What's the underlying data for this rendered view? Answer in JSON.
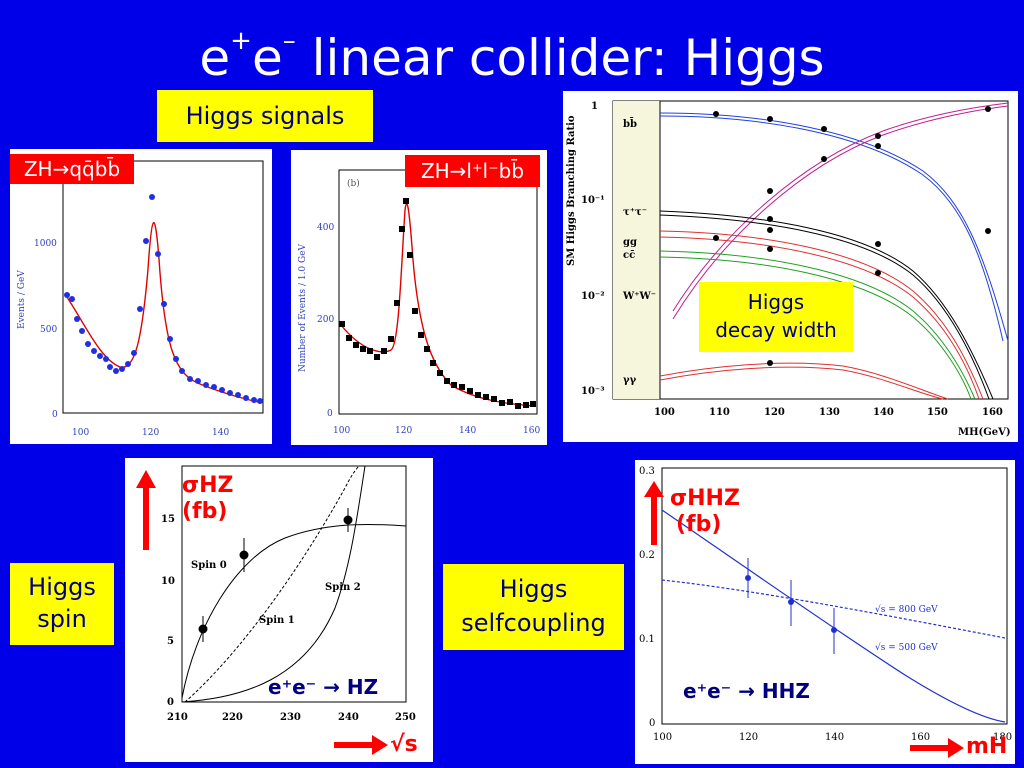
{
  "slide": {
    "title_main": "e",
    "title_sup1": "+",
    "title_e2": "e",
    "title_sup2": "–",
    "title_rest": " linear collider: Higgs"
  },
  "callouts": {
    "higgs_signals": "Higgs signals",
    "decay_width_line1": "Higgs",
    "decay_width_line2": "decay width",
    "spin_line1": "Higgs",
    "spin_line2": "spin",
    "selfcoupling_line1": "Higgs",
    "selfcoupling_line2": "selfcoupling"
  },
  "labels": {
    "zh_qqbb": "ZH→qq̄bb̄",
    "zh_llbb": "ZH→l⁺l⁻bb̄",
    "sigma_hz": "σHZ",
    "sigma_hz_unit": "(fb)",
    "ee_hz": "e⁺e⁻ → HZ",
    "sqrt_s": "√s",
    "sigma_hhz": "σHHZ",
    "sigma_hhz_unit": "(fb)",
    "ee_hhz": "e⁺e⁻ → HHZ",
    "m_h": "mH"
  },
  "plot1": {
    "ylabel": "Events / GeV",
    "yticks": [
      "1000",
      "500",
      "0"
    ],
    "xticks": [
      "100",
      "120",
      "140"
    ]
  },
  "plot2": {
    "panel_tag": "(b)",
    "ylabel": "Number of Events / 1.0 GeV",
    "yticks": [
      "400",
      "200",
      "0"
    ],
    "xticks": [
      "100",
      "120",
      "140",
      "160"
    ]
  },
  "plot3": {
    "ylabel": "SM Higgs Branching Ratio",
    "yticks": [
      "1",
      "10⁻¹",
      "10⁻²",
      "10⁻³"
    ],
    "xticks": [
      "100",
      "110",
      "120",
      "130",
      "140",
      "150",
      "160"
    ],
    "xlabel": "MH(GeV)",
    "channels": [
      "bb̄",
      "τ⁺τ⁻",
      "gg",
      "cc̄",
      "W⁺W⁻",
      "γγ"
    ]
  },
  "plot4": {
    "yticks": [
      "15",
      "10",
      "5",
      "0"
    ],
    "xticks": [
      "210",
      "220",
      "230",
      "240",
      "250"
    ],
    "curve_labels": [
      "Spin 0",
      "Spin 2",
      "Spin 1"
    ]
  },
  "plot5": {
    "yticks": [
      "0.3",
      "0.2",
      "0.1",
      "0"
    ],
    "xticks": [
      "100",
      "120",
      "140",
      "160",
      "180"
    ],
    "curve_labels": [
      "√s = 800 GeV",
      "√s = 500 GeV"
    ]
  },
  "colors": {
    "background": "#0000e8",
    "callout": "#ffff00",
    "callout_text": "#000080",
    "tag": "#ff0000",
    "arrow": "#ff0000"
  }
}
